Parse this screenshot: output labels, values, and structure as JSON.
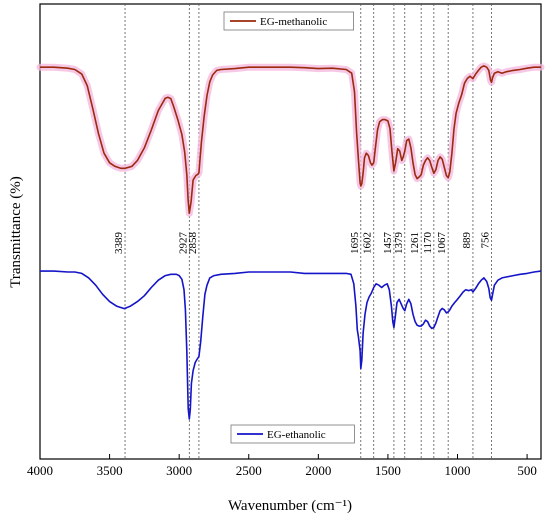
{
  "chart_data": {
    "type": "line",
    "xlabel": "Wavenumber (cm⁻¹)",
    "ylabel": "Transmittance (%)",
    "xlim": [
      4000,
      400
    ],
    "x_reversed": true,
    "ylim": [
      0,
      100
    ],
    "x_ticks": [
      4000,
      3500,
      3000,
      2500,
      2000,
      1500,
      1000,
      500
    ],
    "x_tick_labels": [
      "4000",
      "3500",
      "3000",
      "2500",
      "2000",
      "1500",
      "1000",
      "500"
    ],
    "y_ticks_shown": false,
    "grid": false,
    "legend": "in-plot, per series",
    "peak_markers": [
      {
        "x": 3389,
        "label": "3389"
      },
      {
        "x": 2927,
        "label": "2927"
      },
      {
        "x": 2858,
        "label": "2858"
      },
      {
        "x": 1695,
        "label": "1695"
      },
      {
        "x": 1602,
        "label": "1602"
      },
      {
        "x": 1457,
        "label": "1457"
      },
      {
        "x": 1379,
        "label": "1379"
      },
      {
        "x": 1261,
        "label": "1261"
      },
      {
        "x": 1170,
        "label": "1170"
      },
      {
        "x": 1067,
        "label": "1067"
      },
      {
        "x": 889,
        "label": "889"
      },
      {
        "x": 756,
        "label": "756"
      }
    ],
    "series": [
      {
        "name": "EG-methanolic",
        "color": "#9b2a0e",
        "shade_color": "#f4b6dc",
        "points": [
          [
            4000,
            86.1
          ],
          [
            3900,
            86.1
          ],
          [
            3800,
            85.9
          ],
          [
            3750,
            85.6
          ],
          [
            3700,
            84.6
          ],
          [
            3660,
            82.0
          ],
          [
            3620,
            76.9
          ],
          [
            3580,
            71.5
          ],
          [
            3540,
            67.2
          ],
          [
            3500,
            65.1
          ],
          [
            3460,
            64.3
          ],
          [
            3420,
            63.9
          ],
          [
            3389,
            63.9
          ],
          [
            3340,
            64.3
          ],
          [
            3300,
            65.6
          ],
          [
            3250,
            68.4
          ],
          [
            3200,
            72.3
          ],
          [
            3150,
            76.6
          ],
          [
            3100,
            79.3
          ],
          [
            3080,
            79.5
          ],
          [
            3060,
            79.2
          ],
          [
            3040,
            77.5
          ],
          [
            3010,
            74.6
          ],
          [
            2980,
            71.3
          ],
          [
            2960,
            67.4
          ],
          [
            2945,
            62.5
          ],
          [
            2935,
            56.7
          ],
          [
            2927,
            54.0
          ],
          [
            2915,
            56.4
          ],
          [
            2900,
            61.3
          ],
          [
            2880,
            62.3
          ],
          [
            2865,
            62.6
          ],
          [
            2858,
            62.9
          ],
          [
            2840,
            69.6
          ],
          [
            2820,
            75.4
          ],
          [
            2800,
            79.9
          ],
          [
            2780,
            82.9
          ],
          [
            2760,
            84.4
          ],
          [
            2730,
            85.4
          ],
          [
            2700,
            85.6
          ],
          [
            2600,
            85.8
          ],
          [
            2500,
            86.1
          ],
          [
            2400,
            86.1
          ],
          [
            2200,
            86.1
          ],
          [
            2100,
            86.0
          ],
          [
            2000,
            85.8
          ],
          [
            1900,
            85.9
          ],
          [
            1800,
            85.6
          ],
          [
            1760,
            84.8
          ],
          [
            1740,
            80.7
          ],
          [
            1725,
            71.7
          ],
          [
            1712,
            65.9
          ],
          [
            1700,
            60.7
          ],
          [
            1695,
            60.0
          ],
          [
            1688,
            60.5
          ],
          [
            1678,
            62.8
          ],
          [
            1668,
            66.2
          ],
          [
            1655,
            67.2
          ],
          [
            1640,
            66.7
          ],
          [
            1625,
            65.1
          ],
          [
            1615,
            64.6
          ],
          [
            1602,
            65.1
          ],
          [
            1590,
            68.4
          ],
          [
            1575,
            72.3
          ],
          [
            1560,
            74.1
          ],
          [
            1540,
            74.6
          ],
          [
            1520,
            74.6
          ],
          [
            1500,
            74.3
          ],
          [
            1485,
            72.6
          ],
          [
            1470,
            67.2
          ],
          [
            1457,
            63.3
          ],
          [
            1445,
            65.1
          ],
          [
            1430,
            68.2
          ],
          [
            1415,
            67.7
          ],
          [
            1400,
            65.6
          ],
          [
            1390,
            66.4
          ],
          [
            1379,
            67.7
          ],
          [
            1365,
            70.0
          ],
          [
            1350,
            70.3
          ],
          [
            1335,
            68.4
          ],
          [
            1320,
            65.1
          ],
          [
            1305,
            62.5
          ],
          [
            1290,
            61.6
          ],
          [
            1275,
            62.0
          ],
          [
            1261,
            62.5
          ],
          [
            1245,
            64.6
          ],
          [
            1230,
            65.6
          ],
          [
            1215,
            66.2
          ],
          [
            1200,
            65.6
          ],
          [
            1185,
            64.1
          ],
          [
            1170,
            62.8
          ],
          [
            1155,
            63.6
          ],
          [
            1140,
            65.6
          ],
          [
            1125,
            66.4
          ],
          [
            1110,
            65.9
          ],
          [
            1095,
            64.1
          ],
          [
            1080,
            62.3
          ],
          [
            1067,
            61.8
          ],
          [
            1055,
            63.1
          ],
          [
            1040,
            67.2
          ],
          [
            1025,
            72.6
          ],
          [
            1010,
            76.0
          ],
          [
            990,
            78.3
          ],
          [
            970,
            80.1
          ],
          [
            950,
            82.6
          ],
          [
            930,
            83.6
          ],
          [
            910,
            84.1
          ],
          [
            889,
            83.6
          ],
          [
            870,
            84.6
          ],
          [
            850,
            85.4
          ],
          [
            830,
            86.1
          ],
          [
            810,
            86.4
          ],
          [
            790,
            86.1
          ],
          [
            775,
            85.4
          ],
          [
            763,
            83.3
          ],
          [
            756,
            82.8
          ],
          [
            748,
            83.8
          ],
          [
            735,
            84.8
          ],
          [
            710,
            85.1
          ],
          [
            680,
            84.8
          ],
          [
            650,
            85.1
          ],
          [
            600,
            85.4
          ],
          [
            550,
            85.6
          ],
          [
            500,
            85.9
          ],
          [
            450,
            86.1
          ],
          [
            400,
            86.1
          ]
        ]
      },
      {
        "name": "EG-ethanolic",
        "color": "#1414c8",
        "shade_color": "",
        "points": [
          [
            4000,
            41.3
          ],
          [
            3900,
            41.3
          ],
          [
            3800,
            41.1
          ],
          [
            3750,
            41.1
          ],
          [
            3700,
            40.8
          ],
          [
            3650,
            39.8
          ],
          [
            3600,
            38.2
          ],
          [
            3550,
            36.2
          ],
          [
            3500,
            34.6
          ],
          [
            3450,
            33.6
          ],
          [
            3400,
            33.1
          ],
          [
            3389,
            33.1
          ],
          [
            3350,
            33.6
          ],
          [
            3300,
            34.6
          ],
          [
            3250,
            35.9
          ],
          [
            3200,
            37.7
          ],
          [
            3150,
            39.3
          ],
          [
            3100,
            40.3
          ],
          [
            3060,
            40.6
          ],
          [
            3020,
            40.6
          ],
          [
            3000,
            40.3
          ],
          [
            2980,
            39.5
          ],
          [
            2965,
            37.2
          ],
          [
            2955,
            32.8
          ],
          [
            2945,
            23.8
          ],
          [
            2935,
            11.1
          ],
          [
            2927,
            8.8
          ],
          [
            2920,
            10.9
          ],
          [
            2912,
            16.6
          ],
          [
            2900,
            19.4
          ],
          [
            2885,
            21.2
          ],
          [
            2870,
            22.0
          ],
          [
            2858,
            22.5
          ],
          [
            2845,
            25.8
          ],
          [
            2830,
            31.3
          ],
          [
            2815,
            36.2
          ],
          [
            2800,
            38.2
          ],
          [
            2780,
            39.8
          ],
          [
            2750,
            40.3
          ],
          [
            2700,
            40.6
          ],
          [
            2600,
            40.8
          ],
          [
            2500,
            41.1
          ],
          [
            2400,
            41.1
          ],
          [
            2300,
            41.1
          ],
          [
            2200,
            41.1
          ],
          [
            2100,
            40.8
          ],
          [
            2000,
            40.8
          ],
          [
            1900,
            40.8
          ],
          [
            1800,
            40.8
          ],
          [
            1765,
            40.6
          ],
          [
            1745,
            38.5
          ],
          [
            1730,
            33.6
          ],
          [
            1720,
            28.4
          ],
          [
            1712,
            26.9
          ],
          [
            1700,
            23.8
          ],
          [
            1695,
            19.9
          ],
          [
            1688,
            21.7
          ],
          [
            1678,
            27.6
          ],
          [
            1665,
            31.8
          ],
          [
            1650,
            34.4
          ],
          [
            1635,
            35.6
          ],
          [
            1620,
            36.4
          ],
          [
            1602,
            37.7
          ],
          [
            1585,
            38.5
          ],
          [
            1565,
            38.2
          ],
          [
            1545,
            37.7
          ],
          [
            1525,
            38.2
          ],
          [
            1505,
            38.5
          ],
          [
            1490,
            37.2
          ],
          [
            1475,
            33.6
          ],
          [
            1465,
            30.2
          ],
          [
            1457,
            28.9
          ],
          [
            1447,
            31.3
          ],
          [
            1435,
            34.4
          ],
          [
            1420,
            35.1
          ],
          [
            1405,
            34.1
          ],
          [
            1390,
            33.1
          ],
          [
            1379,
            32.6
          ],
          [
            1365,
            34.1
          ],
          [
            1350,
            35.1
          ],
          [
            1335,
            34.1
          ],
          [
            1320,
            31.8
          ],
          [
            1305,
            30.2
          ],
          [
            1290,
            29.4
          ],
          [
            1275,
            29.2
          ],
          [
            1261,
            29.2
          ],
          [
            1245,
            29.7
          ],
          [
            1230,
            30.5
          ],
          [
            1215,
            30.2
          ],
          [
            1200,
            29.2
          ],
          [
            1185,
            28.7
          ],
          [
            1170,
            28.9
          ],
          [
            1155,
            29.9
          ],
          [
            1140,
            31.3
          ],
          [
            1125,
            32.6
          ],
          [
            1110,
            33.1
          ],
          [
            1095,
            32.8
          ],
          [
            1080,
            32.1
          ],
          [
            1067,
            32.3
          ],
          [
            1055,
            32.8
          ],
          [
            1040,
            33.6
          ],
          [
            1020,
            34.4
          ],
          [
            1000,
            35.1
          ],
          [
            980,
            35.9
          ],
          [
            960,
            36.7
          ],
          [
            940,
            37.2
          ],
          [
            920,
            37.0
          ],
          [
            900,
            37.2
          ],
          [
            889,
            36.7
          ],
          [
            870,
            37.5
          ],
          [
            850,
            38.5
          ],
          [
            830,
            39.3
          ],
          [
            810,
            39.8
          ],
          [
            790,
            39.0
          ],
          [
            775,
            37.5
          ],
          [
            765,
            35.4
          ],
          [
            756,
            34.9
          ],
          [
            748,
            36.2
          ],
          [
            735,
            38.2
          ],
          [
            710,
            39.3
          ],
          [
            680,
            39.8
          ],
          [
            650,
            40.0
          ],
          [
            600,
            40.3
          ],
          [
            550,
            40.6
          ],
          [
            500,
            40.8
          ],
          [
            450,
            41.1
          ],
          [
            400,
            41.3
          ]
        ]
      }
    ]
  }
}
